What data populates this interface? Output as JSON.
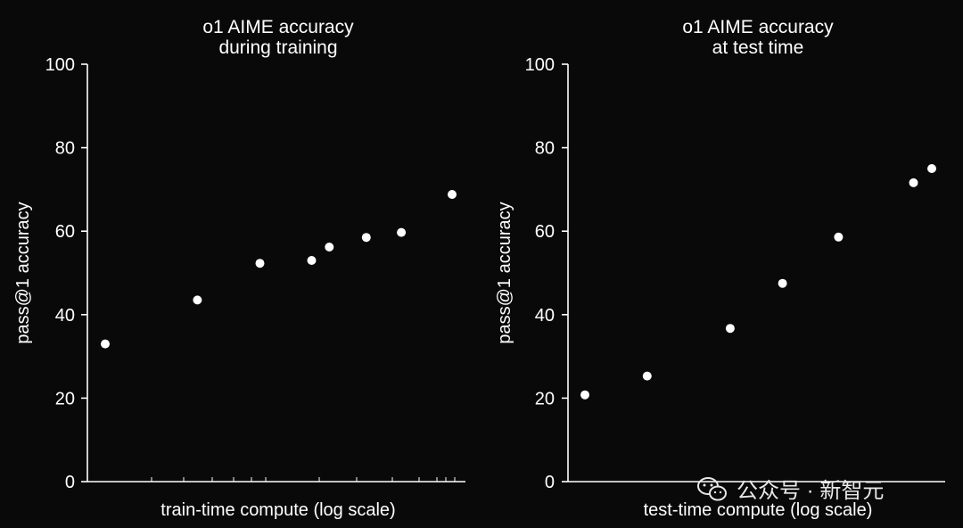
{
  "chart_data": [
    {
      "type": "scatter",
      "title": [
        "o1 AIME accuracy",
        "during training"
      ],
      "xlabel": "train-time compute (log scale)",
      "ylabel": "pass@1 accuracy",
      "xscale": "log",
      "ylim": [
        0,
        100
      ],
      "yticks": [
        0,
        20,
        40,
        60,
        80,
        100
      ],
      "x_tick_labels": [],
      "points": [
        {
          "x": 1.0,
          "y": 33
        },
        {
          "x": 3.4,
          "y": 43.5
        },
        {
          "x": 7.8,
          "y": 52.3
        },
        {
          "x": 15.5,
          "y": 53
        },
        {
          "x": 19.6,
          "y": 56.2
        },
        {
          "x": 32,
          "y": 58.5
        },
        {
          "x": 51,
          "y": 59.7
        },
        {
          "x": 100,
          "y": 68.8
        }
      ]
    },
    {
      "type": "scatter",
      "title": [
        "o1 AIME accuracy",
        "at test time"
      ],
      "xlabel": "test-time compute (log scale)",
      "ylabel": "pass@1 accuracy",
      "xscale": "log",
      "ylim": [
        0,
        100
      ],
      "yticks": [
        0,
        20,
        40,
        60,
        80,
        100
      ],
      "x_tick_labels": [],
      "points": [
        {
          "x": 1.0,
          "y": 20.8
        },
        {
          "x": 2.26,
          "y": 25.3
        },
        {
          "x": 6.7,
          "y": 36.7
        },
        {
          "x": 13.3,
          "y": 47.5
        },
        {
          "x": 27.7,
          "y": 58.6
        },
        {
          "x": 74,
          "y": 71.6
        },
        {
          "x": 94,
          "y": 75
        }
      ]
    }
  ],
  "watermark": {
    "text": "公众号 · 新智元",
    "icon": "wechat-icon"
  }
}
